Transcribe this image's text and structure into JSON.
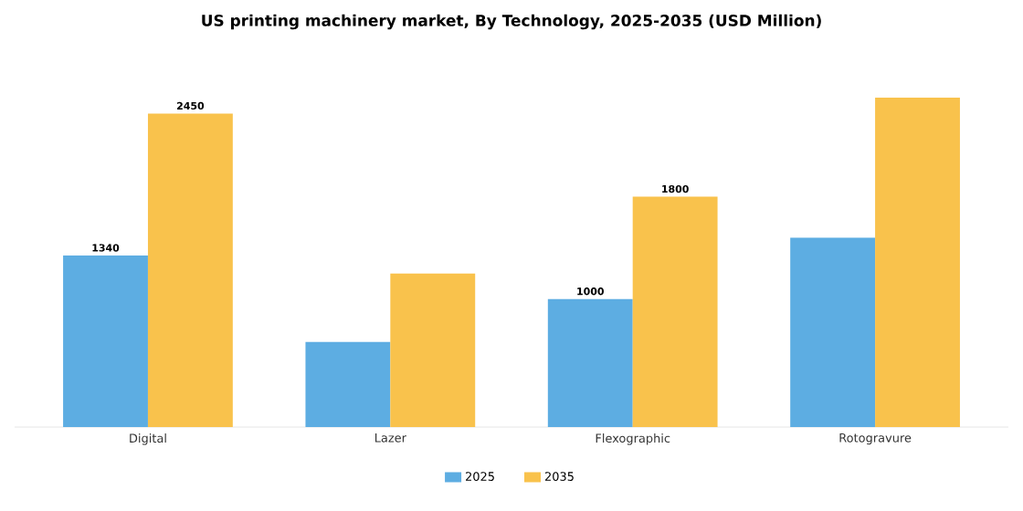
{
  "chart_data": {
    "type": "bar",
    "title": "US printing machinery market, By Technology, 2025-2035 (USD Million)",
    "categories": [
      "Digital",
      "Lazer",
      "Flexographic",
      "Rotogravure"
    ],
    "series": [
      {
        "name": "2025",
        "color": "#5dade2",
        "values": [
          1340,
          665,
          1000,
          1480
        ],
        "value_labels": [
          "1340",
          null,
          "1000",
          null
        ]
      },
      {
        "name": "2035",
        "color": "#f9c24c",
        "values": [
          2450,
          1200,
          1800,
          2575
        ],
        "value_labels": [
          "2450",
          null,
          "1800",
          null
        ]
      }
    ],
    "legend": "bottom"
  }
}
